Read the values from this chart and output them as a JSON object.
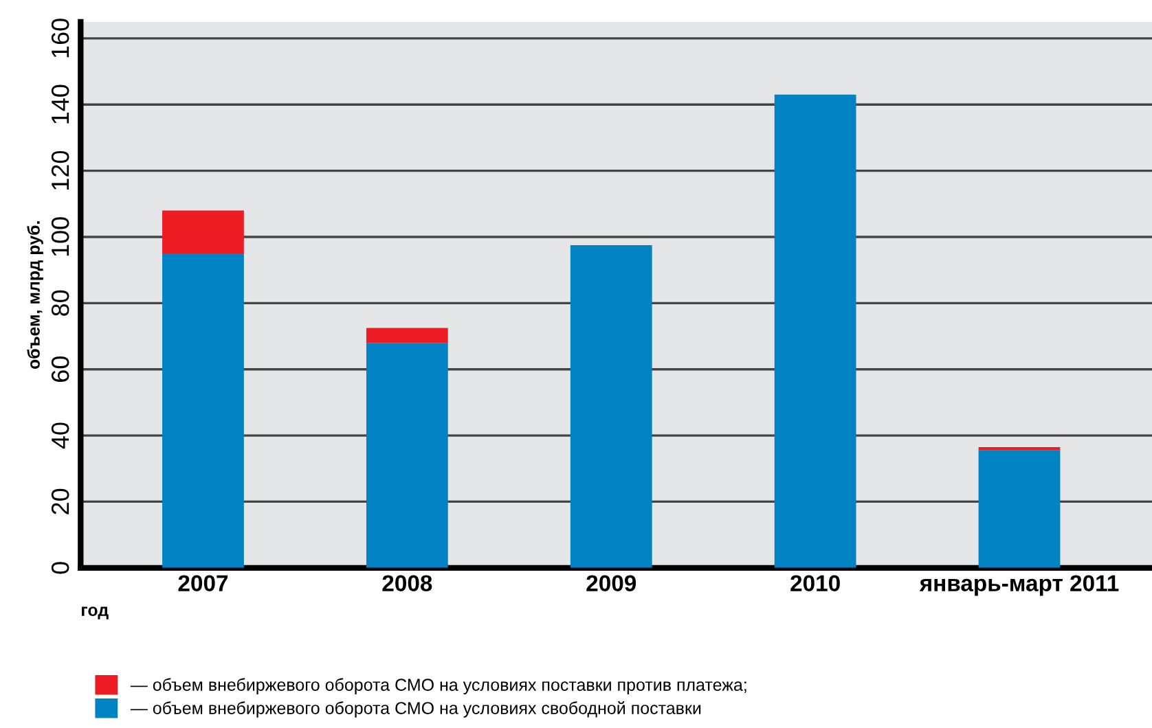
{
  "chart_data": {
    "type": "bar",
    "stacked": true,
    "categories": [
      "2007",
      "2008",
      "2009",
      "2010",
      "январь-март 2011"
    ],
    "series": [
      {
        "name": "— объем внебиржевого оборота СМО на условиях свободной поставки",
        "color": "#0082c3",
        "values": [
          95,
          68,
          97.5,
          143,
          35.5
        ]
      },
      {
        "name": "— объем внебиржевого оборота СМО на условиях поставки против платежа;",
        "color": "#ed1c24",
        "values": [
          13,
          4.5,
          0,
          0,
          1
        ]
      }
    ],
    "xlabel": "год",
    "ylabel": "объем, млрд руб.",
    "ylim": [
      0,
      165
    ],
    "yticks": [
      0,
      20,
      40,
      60,
      80,
      100,
      120,
      140,
      160
    ],
    "grid": "y",
    "legend": "bottom"
  }
}
